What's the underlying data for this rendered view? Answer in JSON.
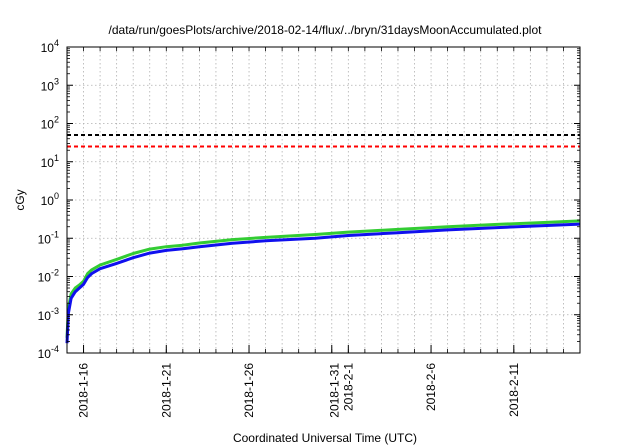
{
  "chart_data": {
    "type": "line",
    "title": "/data/run/goesPlots/archive/2018-02-14/flux/../bryn/31daysMoonAccumulated.plot",
    "xlabel": "Coordinated Universal Time (UTC)",
    "ylabel": "cGy",
    "y_scale": "log",
    "ylim": [
      0.0001,
      10000
    ],
    "xlim": [
      "2018-01-15",
      "2018-02-15"
    ],
    "grid": true,
    "legend": "none",
    "x_ticks": [
      "2018-1-16",
      "2018-1-21",
      "2018-1-26",
      "2018-1-31",
      "2018-2-1",
      "2018-2-6",
      "2018-2-11"
    ],
    "x_tick_labels": [
      "2018-1-16",
      "2018-1-21",
      "2018-1-26",
      "2018-1-31\n2018-2-1",
      "2018-2-6",
      "2018-2-11"
    ],
    "y_tick_exponents": [
      -4,
      -3,
      -2,
      -1,
      0,
      1,
      2,
      3,
      4
    ],
    "reference_lines": [
      {
        "value": 50,
        "color": "#000000",
        "style": "dashed"
      },
      {
        "value": 25,
        "color": "#ff0000",
        "style": "dashed"
      }
    ],
    "series": [
      {
        "color": "#33cc33",
        "x": [
          "2018-01-15",
          "2018-01-15T02:00",
          "2018-01-15T06:00",
          "2018-01-15T12:00",
          "2018-01-15T18:00",
          "2018-01-16",
          "2018-01-16T06:00",
          "2018-01-16T12:00",
          "2018-01-17",
          "2018-01-18",
          "2018-01-19",
          "2018-01-20",
          "2018-01-21",
          "2018-01-22",
          "2018-01-23",
          "2018-01-25",
          "2018-01-27",
          "2018-01-30",
          "2018-02-01",
          "2018-02-04",
          "2018-02-07",
          "2018-02-10",
          "2018-02-13",
          "2018-02-15"
        ],
        "y": [
          0.00025,
          0.0015,
          0.0035,
          0.005,
          0.006,
          0.0075,
          0.012,
          0.015,
          0.02,
          0.028,
          0.04,
          0.052,
          0.06,
          0.066,
          0.075,
          0.092,
          0.105,
          0.125,
          0.145,
          0.17,
          0.2,
          0.23,
          0.26,
          0.285
        ]
      },
      {
        "color": "#1010ee",
        "x": [
          "2018-01-15",
          "2018-01-15T02:00",
          "2018-01-15T06:00",
          "2018-01-15T12:00",
          "2018-01-15T18:00",
          "2018-01-16",
          "2018-01-16T06:00",
          "2018-01-16T12:00",
          "2018-01-17",
          "2018-01-18",
          "2018-01-19",
          "2018-01-20",
          "2018-01-21",
          "2018-01-22",
          "2018-01-23",
          "2018-01-25",
          "2018-01-27",
          "2018-01-30",
          "2018-02-01",
          "2018-02-04",
          "2018-02-07",
          "2018-02-10",
          "2018-02-13",
          "2018-02-15"
        ],
        "y": [
          0.00018,
          0.0011,
          0.0027,
          0.004,
          0.005,
          0.0062,
          0.0095,
          0.012,
          0.016,
          0.022,
          0.031,
          0.041,
          0.048,
          0.053,
          0.06,
          0.074,
          0.086,
          0.1,
          0.118,
          0.14,
          0.165,
          0.19,
          0.215,
          0.235
        ]
      }
    ]
  }
}
